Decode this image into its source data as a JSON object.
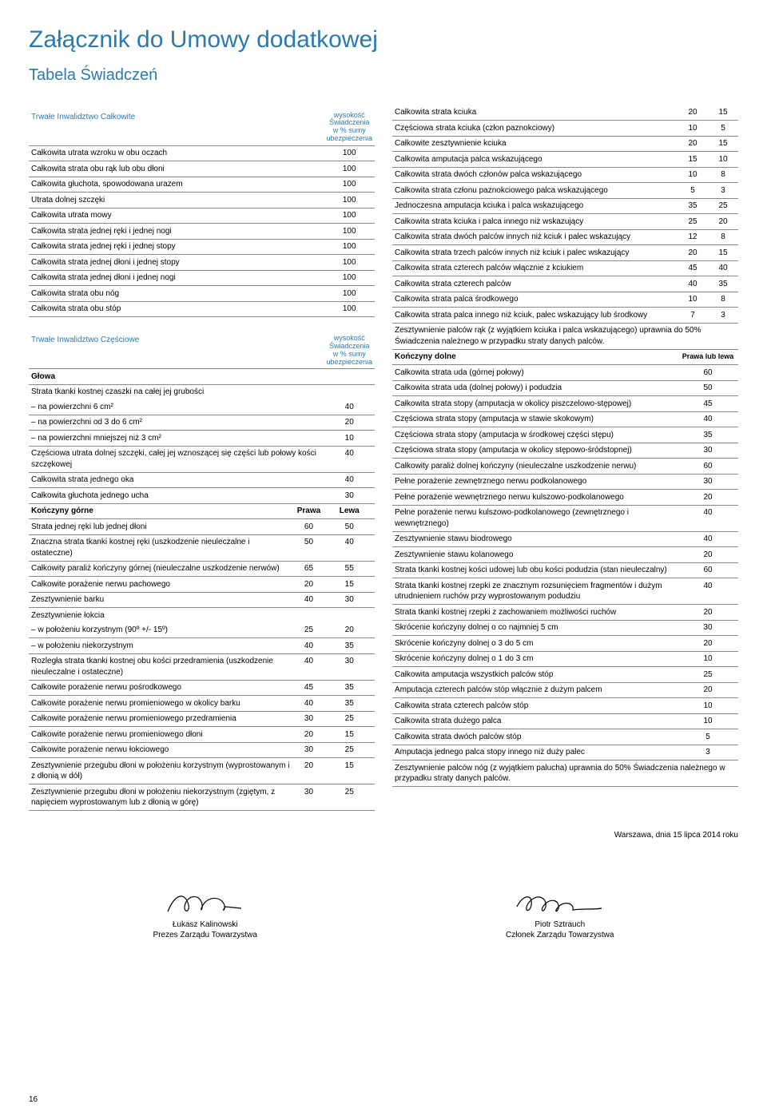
{
  "title": "Załącznik do Umowy dodatkowej",
  "subtitle": "Tabela Świadczeń",
  "col_header": "wysokość Świadczenia w % sumy ubezpieczenia",
  "section1": {
    "title": "Trwałe Inwalidztwo Całkowite",
    "rows": [
      {
        "label": "Całkowita utrata wzroku w obu oczach",
        "v": "100"
      },
      {
        "label": "Całkowita strata obu rąk lub obu dłoni",
        "v": "100"
      },
      {
        "label": "Całkowita głuchota, spowodowana urazem",
        "v": "100"
      },
      {
        "label": "Utrata dolnej szczęki",
        "v": "100"
      },
      {
        "label": "Całkowita utrata mowy",
        "v": "100"
      },
      {
        "label": "Całkowita strata jednej ręki i jednej nogi",
        "v": "100"
      },
      {
        "label": "Całkowita strata jednej ręki i jednej stopy",
        "v": "100"
      },
      {
        "label": "Całkowita strata jednej dłoni i jednej stopy",
        "v": "100"
      },
      {
        "label": "Całkowita strata jednej dłoni i jednej nogi",
        "v": "100"
      },
      {
        "label": "Całkowita strata obu nóg",
        "v": "100"
      },
      {
        "label": "Całkowita strata obu stóp",
        "v": "100"
      }
    ]
  },
  "section2": {
    "title": "Trwałe Inwalidztwo Częściowe",
    "glowa": "Głowa",
    "tissue_intro": "Strata tkanki kostnej czaszki na całej jej grubości",
    "tissue_rows": [
      {
        "label": "– na powierzchni 6 cm²",
        "v": "40"
      },
      {
        "label": "– na powierzchni od 3 do 6 cm²",
        "v": "20"
      },
      {
        "label": "– na powierzchni mniejszej niż 3 cm²",
        "v": "10"
      }
    ],
    "simple_rows": [
      {
        "label": "Częściowa utrata dolnej szczęki, całej jej wznoszącej się części lub połowy kości szczękowej",
        "v": "40"
      },
      {
        "label": "Całkowita strata jednego oka",
        "v": "40"
      },
      {
        "label": "Całkowita głuchota jednego ucha",
        "v": "30"
      }
    ],
    "upper_limbs_title": "Kończyny górne",
    "prawa": "Prawa",
    "lewa": "Lewa",
    "upper_rows": [
      {
        "label": "Strata jednej ręki lub jednej dłoni",
        "a": "60",
        "b": "50"
      },
      {
        "label": "Znaczna strata tkanki kostnej ręki (uszkodzenie nieuleczalne i ostateczne)",
        "a": "50",
        "b": "40"
      },
      {
        "label": "Całkowity paraliż kończyny górnej (nieuleczalne uszkodzenie nerwów)",
        "a": "65",
        "b": "55"
      },
      {
        "label": "Całkowite porażenie nerwu pachowego",
        "a": "20",
        "b": "15"
      },
      {
        "label": "Zesztywnienie barku",
        "a": "40",
        "b": "30"
      }
    ],
    "elbow_title": "Zesztywnienie łokcia",
    "elbow_rows": [
      {
        "label": "– w położeniu korzystnym (90º +/- 15º)",
        "a": "25",
        "b": "20"
      },
      {
        "label": "– w położeniu niekorzystnym",
        "a": "40",
        "b": "35"
      }
    ],
    "more_upper": [
      {
        "label": "Rozległa strata tkanki kostnej obu kości przedramienia (uszkodzenie nieuleczalne i ostateczne)",
        "a": "40",
        "b": "30"
      },
      {
        "label": "Całkowite porażenie nerwu pośrodkowego",
        "a": "45",
        "b": "35"
      },
      {
        "label": "Całkowite porażenie nerwu promieniowego w okolicy barku",
        "a": "40",
        "b": "35"
      },
      {
        "label": "Całkowite porażenie nerwu promieniowego przedramienia",
        "a": "30",
        "b": "25"
      },
      {
        "label": "Całkowite porażenie nerwu promieniowego dłoni",
        "a": "20",
        "b": "15"
      },
      {
        "label": "Całkowite porażenie nerwu łokciowego",
        "a": "30",
        "b": "25"
      },
      {
        "label": "Zesztywnienie przegubu dłoni w położeniu korzystnym (wyprostowanym i z dłonią w dół)",
        "a": "20",
        "b": "15"
      },
      {
        "label": "Zesztywnienie przegubu dłoni w położeniu niekorzystnym (zgiętym, z napięciem wyprostowanym lub z dłonią w górę)",
        "a": "30",
        "b": "25"
      }
    ]
  },
  "right_col": {
    "thumb_rows": [
      {
        "label": "Całkowita strata kciuka",
        "a": "20",
        "b": "15"
      },
      {
        "label": "Częściowa strata kciuka (człon paznokciowy)",
        "a": "10",
        "b": "5"
      },
      {
        "label": "Całkowite zesztywnienie kciuka",
        "a": "20",
        "b": "15"
      },
      {
        "label": "Całkowita amputacja palca wskazującego",
        "a": "15",
        "b": "10"
      },
      {
        "label": "Całkowita strata dwóch członów palca wskazującego",
        "a": "10",
        "b": "8"
      },
      {
        "label": "Całkowita strata członu paznokciowego palca wskazującego",
        "a": "5",
        "b": "3"
      },
      {
        "label": "Jednoczesna amputacja kciuka i palca wskazującego",
        "a": "35",
        "b": "25"
      },
      {
        "label": "Całkowita strata kciuka i palca innego niż wskazujący",
        "a": "25",
        "b": "20"
      },
      {
        "label": "Całkowita strata dwóch palców innych niż kciuk i palec wskazujący",
        "a": "12",
        "b": "8"
      },
      {
        "label": "Całkowita strata trzech palców innych niż kciuk i palec wskazujący",
        "a": "20",
        "b": "15"
      },
      {
        "label": "Całkowita strata czterech palców włącznie z kciukiem",
        "a": "45",
        "b": "40"
      },
      {
        "label": "Całkowita strata czterech palców",
        "a": "40",
        "b": "35"
      },
      {
        "label": "Całkowita strata palca środkowego",
        "a": "10",
        "b": "8"
      },
      {
        "label": "Całkowita strata palca innego niż kciuk, palec wskazujący lub środkowy",
        "a": "7",
        "b": "3"
      }
    ],
    "note1": "Zesztywnienie palców rąk (z wyjątkiem kciuka i palca wskazującego) uprawnia do 50% Świadczenia należnego w przypadku straty danych palców.",
    "lower_title": "Kończyny dolne",
    "lower_header": "Prawa lub lewa",
    "lower_rows": [
      {
        "label": "Całkowita strata uda (górnej połowy)",
        "v": "60"
      },
      {
        "label": "Całkowita strata uda (dolnej połowy) i podudzia",
        "v": "50"
      },
      {
        "label": "Całkowita strata stopy (amputacja w okolicy piszczelowo-stępowej)",
        "v": "45"
      },
      {
        "label": "Częściowa strata stopy (amputacja w stawie skokowym)",
        "v": "40"
      },
      {
        "label": "Częściowa strata stopy (amputacja w środkowej części stępu)",
        "v": "35"
      },
      {
        "label": "Częściowa strata stopy (amputacja w okolicy stępowo-śródstopnej)",
        "v": "30"
      },
      {
        "label": "Całkowity paraliż dolnej kończyny (nieuleczalne uszkodzenie nerwu)",
        "v": "60"
      },
      {
        "label": "Pełne porażenie zewnętrznego nerwu podkolanowego",
        "v": "30"
      },
      {
        "label": "Pełne porażenie wewnętrznego nerwu kulszowo-podkolanowego",
        "v": "20"
      },
      {
        "label": "Pełne porażenie nerwu kulszowo-podkolanowego (zewnętrznego i wewnętrznego)",
        "v": "40"
      },
      {
        "label": "Zesztywnienie stawu biodrowego",
        "v": "40"
      },
      {
        "label": "Zesztywnienie stawu kolanowego",
        "v": "20"
      },
      {
        "label": "Strata tkanki kostnej kości udowej lub obu kości podudzia (stan nieuleczalny)",
        "v": "60"
      },
      {
        "label": "Strata tkanki kostnej rzepki ze znacznym rozsunięciem fragmentów i dużym utrudnieniem ruchów przy wyprostowanym podudziu",
        "v": "40"
      },
      {
        "label": "Strata tkanki kostnej rzepki z zachowaniem możliwości ruchów",
        "v": "20"
      },
      {
        "label": "Skrócenie kończyny dolnej o co najmniej 5 cm",
        "v": "30"
      },
      {
        "label": "Skrócenie kończyny dolnej o 3 do 5 cm",
        "v": "20"
      },
      {
        "label": "Skrócenie kończyny dolnej o 1 do 3 cm",
        "v": "10"
      },
      {
        "label": "Całkowita amputacja wszystkich palców stóp",
        "v": "25"
      },
      {
        "label": "Amputacja czterech palców stóp włącznie z dużym palcem",
        "v": "20"
      },
      {
        "label": "Całkowita strata czterech palców stóp",
        "v": "10"
      },
      {
        "label": "Całkowita strata dużego palca",
        "v": "10"
      },
      {
        "label": "Całkowita strata dwóch palców stóp",
        "v": "5"
      },
      {
        "label": "Amputacja jednego palca stopy innego niż duży palec",
        "v": "3"
      }
    ],
    "note2": "Zesztywnienie palców nóg (z wyjątkiem palucha) uprawnia do 50% Świadczenia należnego w przypadku straty danych palców."
  },
  "footer_date": "Warszawa, dnia 15 lipca 2014 roku",
  "sig1_name": "Łukasz Kalinowski",
  "sig1_title": "Prezes Zarządu Towarzystwa",
  "sig2_name": "Piotr Sztrauch",
  "sig2_title": "Członek Zarządu Towarzystwa",
  "page": "16"
}
